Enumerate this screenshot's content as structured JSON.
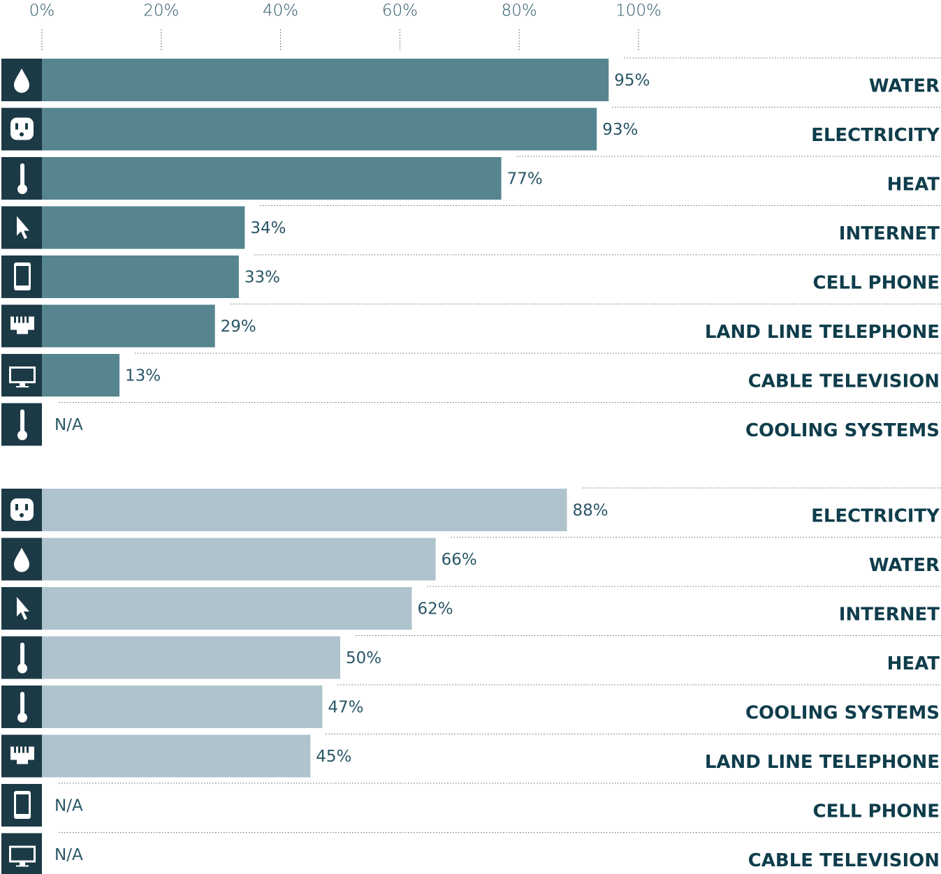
{
  "chart_data": [
    {
      "type": "bar",
      "orientation": "horizontal",
      "categories": [
        "WATER",
        "ELECTRICITY",
        "HEAT",
        "INTERNET",
        "CELL PHONE",
        "LAND LINE TELEPHONE",
        "CABLE TELEVISION",
        "COOLING SYSTEMS"
      ],
      "values": [
        95,
        93,
        77,
        34,
        33,
        29,
        13,
        null
      ],
      "value_labels": [
        "95%",
        "93%",
        "77%",
        "34%",
        "33%",
        "29%",
        "13%",
        "N/A"
      ],
      "color": "#56858f",
      "xlim": [
        0,
        100
      ],
      "xticks": [
        {
          "value": 0,
          "label": "0%"
        },
        {
          "value": 20,
          "label": "20%"
        },
        {
          "value": 40,
          "label": "40%"
        },
        {
          "value": 60,
          "label": "60%"
        },
        {
          "value": 80,
          "label": "80%"
        },
        {
          "value": 100,
          "label": "100%"
        }
      ]
    },
    {
      "type": "bar",
      "orientation": "horizontal",
      "categories": [
        "ELECTRICITY",
        "WATER",
        "INTERNET",
        "HEAT",
        "COOLING SYSTEMS",
        "LAND LINE TELEPHONE",
        "CELL PHONE",
        "CABLE TELEVISION"
      ],
      "values": [
        88,
        66,
        62,
        50,
        47,
        45,
        null,
        null
      ],
      "value_labels": [
        "88%",
        "66%",
        "62%",
        "50%",
        "47%",
        "45%",
        "N/A",
        "N/A"
      ],
      "color": "#afc3cc",
      "xlim": [
        0,
        100
      ]
    }
  ]
}
